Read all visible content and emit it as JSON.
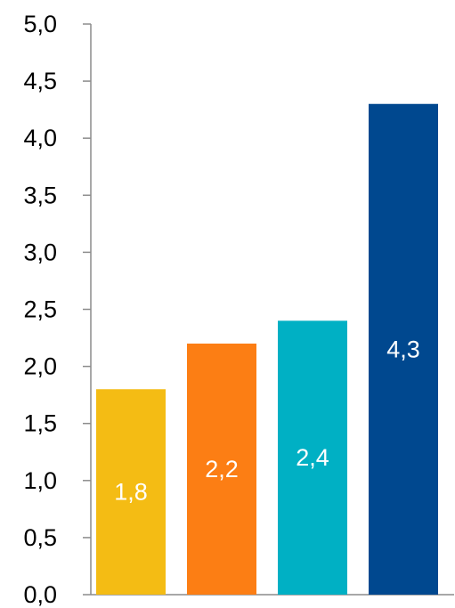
{
  "chart_data": {
    "type": "bar",
    "categories": [
      "",
      "",
      "",
      ""
    ],
    "values": [
      1.8,
      2.2,
      2.4,
      4.3
    ],
    "data_labels": [
      "1,8",
      "2,2",
      "2,4",
      "4,3"
    ],
    "colors": [
      "#f4bc14",
      "#fc7e14",
      "#00b0c4",
      "#00488f"
    ],
    "y_tick_labels": [
      "0,0",
      "0,5",
      "1,0",
      "1,5",
      "2,0",
      "2,5",
      "3,0",
      "3,5",
      "4,0",
      "4,5",
      "5,0"
    ],
    "ylim": [
      0,
      5
    ],
    "y_tick_step": 0.5,
    "grid": false,
    "legend": "none",
    "title": "",
    "xlabel": "",
    "ylabel": ""
  }
}
